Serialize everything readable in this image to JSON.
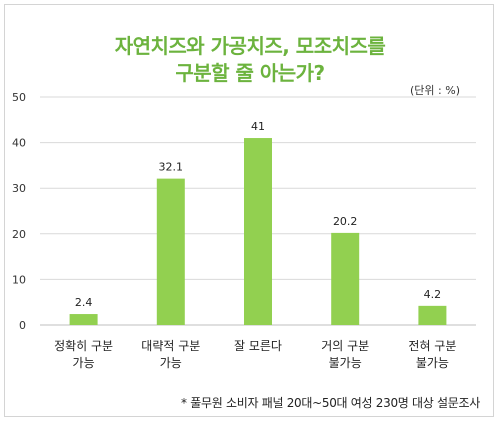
{
  "chart_data": {
    "type": "bar",
    "title_line1": "자연치즈와 가공치즈, 모조치즈를",
    "title_line2": "구분할 줄 아는가?",
    "unit": "(단위 : %)",
    "categories": [
      [
        "정확히 구분",
        "가능"
      ],
      [
        "대략적 구분",
        "가능"
      ],
      [
        "잘 모른다"
      ],
      [
        "거의 구분",
        "불가능"
      ],
      [
        "전혀 구분",
        "불가능"
      ]
    ],
    "values": [
      2.4,
      32.1,
      41,
      20.2,
      4.2
    ],
    "value_labels": [
      "2.4",
      "32.1",
      "41",
      "20.2",
      "4.2"
    ],
    "ylim": [
      0,
      50
    ],
    "yticks": [
      0,
      10,
      20,
      30,
      40,
      50
    ],
    "grid": true,
    "bar_color": "#92d050",
    "title_color": "#6cb33e",
    "footnote": "* 풀무원 소비자 패널 20대~50대 여성 230명 대상 설문조사"
  }
}
